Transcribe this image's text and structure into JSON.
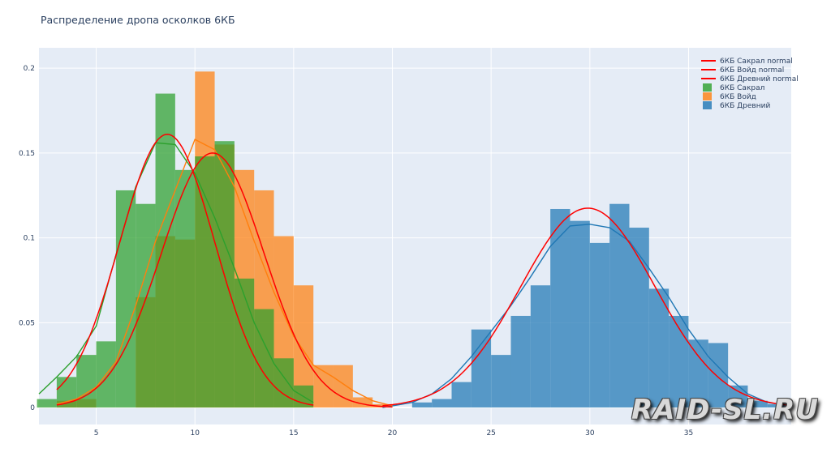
{
  "chart_data": {
    "type": "bar",
    "title": "Распределение дропа осколков 6КБ",
    "xlim": [
      2.1,
      40.2
    ],
    "ylim": [
      -0.01,
      0.212
    ],
    "x_ticks": [
      5,
      10,
      15,
      20,
      25,
      30,
      35
    ],
    "y_ticks": [
      0,
      0.05,
      0.1,
      0.15,
      0.2
    ],
    "y_tick_labels": [
      "0",
      "0.05",
      "0.1",
      "0.15",
      "0.2"
    ],
    "grid": true,
    "legend_position": "top-right",
    "bin_width": 1,
    "histograms": [
      {
        "name": "6КБ Древний",
        "color": "#1f77b4",
        "bin_starts": [
          21,
          22,
          23,
          24,
          25,
          26,
          27,
          28,
          29,
          30,
          31,
          32,
          33,
          34,
          35,
          36,
          37,
          38,
          39
        ],
        "values": [
          0.003,
          0.005,
          0.015,
          0.046,
          0.031,
          0.054,
          0.072,
          0.117,
          0.11,
          0.097,
          0.12,
          0.106,
          0.07,
          0.054,
          0.04,
          0.038,
          0.013,
          0.004,
          0.002
        ],
        "kde": [
          [
            19.5,
            0.0
          ],
          [
            21,
            0.003
          ],
          [
            22,
            0.008
          ],
          [
            23,
            0.017
          ],
          [
            24,
            0.03
          ],
          [
            25,
            0.045
          ],
          [
            26,
            0.06
          ],
          [
            27,
            0.077
          ],
          [
            28,
            0.095
          ],
          [
            29,
            0.107
          ],
          [
            30,
            0.108
          ],
          [
            31,
            0.106
          ],
          [
            32,
            0.098
          ],
          [
            33,
            0.082
          ],
          [
            34,
            0.065
          ],
          [
            35,
            0.046
          ],
          [
            36,
            0.03
          ],
          [
            37,
            0.018
          ],
          [
            38,
            0.008
          ],
          [
            39,
            0.003
          ],
          [
            40.2,
            0.001
          ]
        ],
        "normal": {
          "label": "6КБ Древний normal",
          "mean": 29.9,
          "sd": 3.4,
          "scale": 0.1175,
          "range": [
            19.5,
            40.2
          ]
        }
      },
      {
        "name": "6КБ Войд",
        "color": "#ff7f0e",
        "bin_starts": [
          3,
          4,
          5,
          6,
          7,
          8,
          9,
          10,
          11,
          12,
          13,
          14,
          15,
          16,
          17,
          18,
          19
        ],
        "values": [
          0.004,
          0.005,
          0.0,
          0.0,
          0.065,
          0.101,
          0.099,
          0.198,
          0.155,
          0.14,
          0.128,
          0.101,
          0.072,
          0.025,
          0.025,
          0.006,
          0.002
        ],
        "kde": [
          [
            3,
            0.002
          ],
          [
            4,
            0.005
          ],
          [
            5,
            0.012
          ],
          [
            6,
            0.027
          ],
          [
            7,
            0.06
          ],
          [
            8,
            0.098
          ],
          [
            9,
            0.128
          ],
          [
            10,
            0.158
          ],
          [
            11,
            0.152
          ],
          [
            12,
            0.13
          ],
          [
            13,
            0.098
          ],
          [
            14,
            0.068
          ],
          [
            15,
            0.042
          ],
          [
            16,
            0.025
          ],
          [
            17,
            0.018
          ],
          [
            18,
            0.01
          ],
          [
            19,
            0.004
          ],
          [
            20,
            0.001
          ]
        ],
        "normal": {
          "label": "6КБ Войд normal",
          "mean": 10.9,
          "sd": 2.6,
          "scale": 0.15,
          "range": [
            3,
            20
          ]
        }
      },
      {
        "name": "6КБ Сакрал",
        "color": "#2ca02c",
        "bin_starts": [
          2,
          3,
          4,
          5,
          6,
          7,
          8,
          9,
          10,
          11,
          12,
          13,
          14,
          15
        ],
        "values": [
          0.005,
          0.018,
          0.031,
          0.039,
          0.128,
          0.12,
          0.185,
          0.14,
          0.148,
          0.157,
          0.076,
          0.058,
          0.029,
          0.013
        ],
        "kde": [
          [
            2.1,
            0.008
          ],
          [
            3,
            0.018
          ],
          [
            4,
            0.03
          ],
          [
            5,
            0.048
          ],
          [
            6,
            0.09
          ],
          [
            7,
            0.13
          ],
          [
            8,
            0.156
          ],
          [
            9,
            0.155
          ],
          [
            10,
            0.138
          ],
          [
            11,
            0.112
          ],
          [
            12,
            0.082
          ],
          [
            13,
            0.05
          ],
          [
            14,
            0.026
          ],
          [
            15,
            0.01
          ],
          [
            16,
            0.003
          ]
        ],
        "normal": {
          "label": "6КБ Сакрал normal",
          "mean": 8.6,
          "sd": 2.4,
          "scale": 0.161,
          "range": [
            3,
            16
          ]
        }
      }
    ],
    "normal_color": "#ff0000",
    "legend": [
      {
        "label": "6КБ Сакрал normal",
        "kind": "line",
        "color": "#ff0000"
      },
      {
        "label": "6КБ Войд normal",
        "kind": "line",
        "color": "#ff0000"
      },
      {
        "label": "6КБ Древний normal",
        "kind": "line",
        "color": "#ff0000"
      },
      {
        "label": "6КБ Сакрал",
        "kind": "bar",
        "color": "#2ca02c"
      },
      {
        "label": "6КБ Войд",
        "kind": "bar",
        "color": "#ff7f0e"
      },
      {
        "label": "6КБ Древний",
        "kind": "bar",
        "color": "#1f77b4"
      }
    ]
  },
  "watermark": "RAID-SL.RU",
  "colors": {
    "plot_bg": "#e5ecf6",
    "grid": "#ffffff",
    "text": "#2a3f5f"
  }
}
